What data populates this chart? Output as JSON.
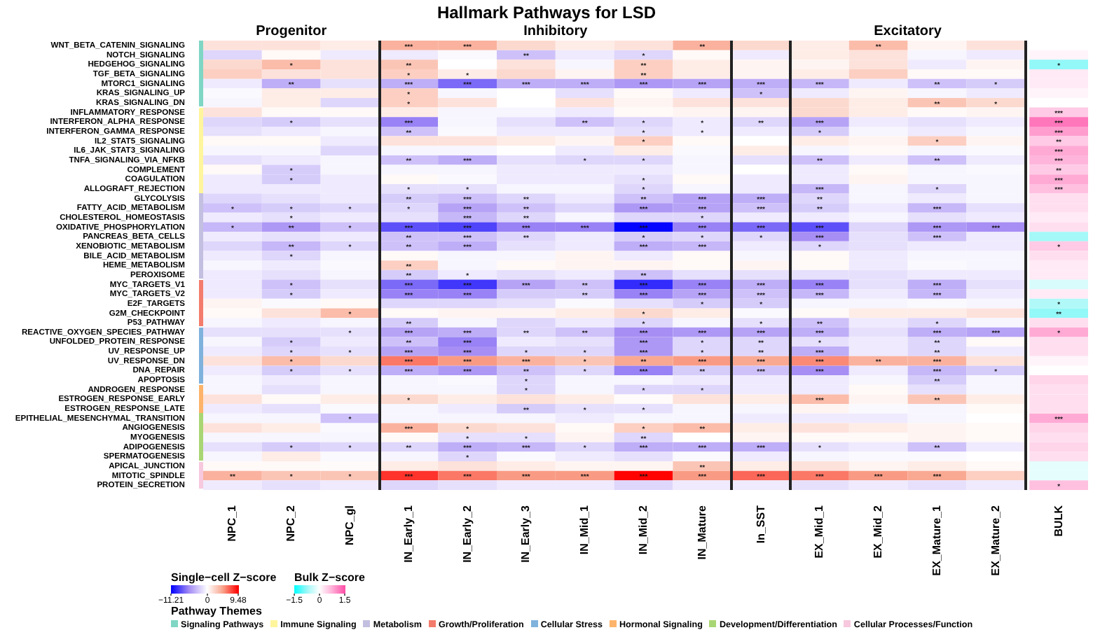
{
  "chart_data": [
    {
      "type": "heatmap",
      "title": "Hallmark Pathways for LSD",
      "clabel": "Single−cell Z−score",
      "legend_title": "Pathway Themes",
      "annotations": [
        "Progenitor",
        "Inhibitory",
        "Excitatory",
        "Signaling Pathways",
        "Immune Signaling",
        "Metabolism",
        "Growth/Proliferation",
        "Cellular Stress",
        "Hormonal Signaling",
        "Development/Differentiation",
        "Cellular Processes/Function"
      ],
      "categories": [
        "NPC_1",
        "NPC_2",
        "NPC_gl",
        "IN_Early_1",
        "IN_Early_2",
        "IN_Early_3",
        "IN_Mid_1",
        "IN_Mid_2",
        "IN_Mature",
        "In_SST",
        "EX_Mid_1",
        "EX_Mid_2",
        "EX_Mature_1",
        "EX_Mature_2"
      ],
      "y_categories": [
        "WNT_BETA_CATENIN_SIGNALING",
        "NOTCH_SIGNALING",
        "HEDGEHOG_SIGNALING",
        "TGF_BETA_SIGNALING",
        "MTORC1_SIGNALING",
        "KRAS_SIGNALING_UP",
        "KRAS_SIGNALING_DN",
        "INFLAMMATORY_RESPONSE",
        "INTERFERON_ALPHA_RESPONSE",
        "INTERFERON_GAMMA_RESPONSE",
        "IL2_STAT5_SIGNALING",
        "IL6_JAK_STAT3_SIGNALING",
        "TNFA_SIGNALING_VIA_NFKB",
        "COMPLEMENT",
        "COAGULATION",
        "ALLOGRAFT_REJECTION",
        "GLYCOLYSIS",
        "FATTY_ACID_METABOLISM",
        "CHOLESTEROL_HOMEOSTASIS",
        "OXIDATIVE_PHOSPHORYLATION",
        "PANCREAS_BETA_CELLS",
        "XENOBIOTIC_METABOLISM",
        "BILE_ACID_METABOLISM",
        "HEME_METABOLISM",
        "PEROXISOME",
        "MYC_TARGETS_V1",
        "MYC_TARGETS_V2",
        "E2F_TARGETS",
        "G2M_CHECKPOINT",
        "P53_PATHWAY",
        "REACTIVE_OXYGEN_SPECIES_PATHWAY",
        "UNFOLDED_PROTEIN_RESPONSE",
        "UV_RESPONSE_UP",
        "UV_RESPONSE_DN",
        "DNA_REPAIR",
        "APOPTOSIS",
        "ANDROGEN_RESPONSE",
        "ESTROGEN_RESPONSE_EARLY",
        "ESTROGEN_RESPONSE_LATE",
        "EPITHELIAL_MESENCHYMAL_TRANSITION",
        "ANGIOGENESIS",
        "MYOGENESIS",
        "ADIPOGENESIS",
        "SPERMATOGENESIS",
        "APICAL_JUNCTION",
        "MITOTIC_SPINDLE",
        "PROTEIN_SECRETION"
      ],
      "cells": [
        [
          1.5,
          1.5,
          1,
          4,
          4,
          2,
          1,
          1.5,
          4,
          2,
          1,
          3.5,
          0.5,
          1.5
        ],
        [
          -2,
          0.3,
          -1,
          -1,
          -0.3,
          -3,
          -1,
          -2,
          0.3,
          -1,
          1,
          1.5,
          -0.5,
          -1
        ],
        [
          2,
          3.5,
          1.5,
          3,
          0,
          1.5,
          -0.5,
          2.5,
          1,
          0.5,
          0.5,
          1.5,
          -1,
          0.5
        ],
        [
          2.5,
          1.5,
          1.5,
          2.5,
          1,
          2,
          0.5,
          2.5,
          1,
          0.5,
          1,
          2.5,
          0.3,
          0.3
        ],
        [
          -1,
          -4,
          -1.5,
          -4,
          -7,
          -4,
          -4,
          -5,
          -4.5,
          -4,
          -3.5,
          -1,
          -3,
          -2.5
        ],
        [
          -0.3,
          1,
          1,
          2.5,
          -0.5,
          0,
          -1.5,
          0.3,
          -1,
          -3,
          -1,
          0.5,
          -0.5,
          -1
        ],
        [
          -0.5,
          1,
          -2,
          2.5,
          1.5,
          0,
          1.5,
          0.5,
          1.5,
          1.5,
          2,
          1,
          3,
          2
        ],
        [
          1.5,
          0.3,
          0.3,
          1,
          -0.5,
          -0.5,
          -1,
          0.3,
          0.5,
          0.5,
          2,
          1,
          0.3,
          0.5
        ],
        [
          -2,
          -2.5,
          -1.5,
          -6,
          -0.5,
          -1.5,
          -3,
          -2,
          -1,
          -2,
          -4.5,
          -1,
          -1.5,
          -1
        ],
        [
          -1.5,
          -1,
          -0.5,
          -3,
          -0.3,
          -1,
          -1,
          -1.5,
          -1,
          -1,
          -2.5,
          -0.5,
          -1,
          -0.5
        ],
        [
          0.3,
          0.3,
          -1,
          1.5,
          1.5,
          1,
          0.5,
          2.5,
          0.3,
          0,
          1,
          0.5,
          2.5,
          0.5
        ],
        [
          -0.5,
          -0.5,
          -2,
          -0.5,
          -0.5,
          0,
          -1,
          1,
          -0.3,
          1,
          -0.5,
          0.3,
          -0.5,
          -0.3
        ],
        [
          -1.5,
          -1,
          -0.5,
          -3,
          -4,
          -1.5,
          -2,
          -2,
          -0.5,
          -1.5,
          -3,
          -1,
          -3,
          -1
        ],
        [
          0.3,
          -2.5,
          -0.5,
          -0.5,
          -0.5,
          -1,
          -1,
          -1,
          -0.5,
          0,
          -1,
          0.3,
          -0.5,
          -0.3
        ],
        [
          -1,
          -2.5,
          -1,
          0.3,
          -0.3,
          -1,
          -1,
          -1.5,
          0.3,
          -1,
          -1,
          0.5,
          -0.5,
          -0.5
        ],
        [
          -1,
          -1,
          -1,
          -1.5,
          -1.5,
          -0.5,
          -0.5,
          -2,
          -0.5,
          -1,
          -3.5,
          -0.5,
          -2,
          -0.5
        ],
        [
          -2,
          -1.5,
          -1,
          -2.5,
          -3,
          -2,
          -1,
          -3,
          -4.5,
          -4,
          -2,
          -0.5,
          -1,
          -0.5
        ],
        [
          -3,
          -2.5,
          -2,
          -2,
          -4.5,
          -3,
          -2,
          -5,
          -4.5,
          -3,
          -2.5,
          -1,
          -3.5,
          -1.5
        ],
        [
          -1,
          -1.5,
          -1,
          -1.5,
          -3.5,
          -2,
          -0.5,
          -2,
          -2,
          -1,
          -1,
          -0.5,
          -1.5,
          -1
        ],
        [
          -3.5,
          -5,
          -3,
          -8,
          -8.5,
          -6,
          -6,
          -11,
          -6,
          -7,
          -8,
          -2,
          -5,
          -5.5
        ],
        [
          -1,
          -1.5,
          -1,
          -3,
          -3,
          -2,
          -1,
          -2.5,
          -2,
          -2,
          -5.5,
          -1.5,
          -3,
          -1
        ],
        [
          -2,
          -3.5,
          -2,
          -3,
          -4,
          -1.5,
          -1,
          -4,
          -3.5,
          -1,
          -2,
          -1.5,
          -1,
          -1
        ],
        [
          -1,
          -2,
          -0.5,
          0.3,
          -0.5,
          -0.5,
          0.5,
          -1,
          0.3,
          -0.5,
          0.3,
          -1,
          -0.5,
          -0.5
        ],
        [
          -0.5,
          -1,
          -0.3,
          2.5,
          -0.5,
          0.3,
          0.5,
          0.5,
          0.3,
          0.5,
          0.3,
          -1,
          -0.3,
          -0.5
        ],
        [
          -1,
          -1.5,
          -0.5,
          -2.5,
          -1,
          -1.5,
          -1,
          -3,
          -1.5,
          -1.5,
          -1.5,
          -1.5,
          -1,
          -1
        ],
        [
          -1,
          -3,
          -1.5,
          -7,
          -9,
          -4.5,
          -3,
          -9.5,
          -6,
          -4,
          -6,
          -1.5,
          -4,
          -1.5
        ],
        [
          -1,
          -2.5,
          -1,
          -6,
          -6,
          -2.5,
          -2.5,
          -6,
          -4.5,
          -3,
          -3.5,
          -1,
          -3.5,
          -1
        ],
        [
          0.5,
          -0.3,
          0.3,
          -2,
          -2,
          -1.5,
          -0.3,
          -1.5,
          -2.5,
          -2.5,
          -0.5,
          -0.5,
          -0.3,
          -0.5
        ],
        [
          0.3,
          1.5,
          3.5,
          0.3,
          0.5,
          0.5,
          1,
          2,
          1,
          -0.3,
          0.3,
          1,
          1,
          1.5
        ],
        [
          -0.5,
          -1,
          -0.5,
          -2.5,
          -0.5,
          -2,
          -1,
          -2,
          -0.5,
          -1.5,
          -3,
          -1,
          -2,
          -0.5
        ],
        [
          -1.5,
          -1.5,
          -1.5,
          -4.5,
          -4,
          -2,
          -3,
          -5.5,
          -5,
          -4.5,
          -4,
          -1.5,
          -4,
          -4.5
        ],
        [
          -0.5,
          -2.5,
          -1,
          -3,
          -6,
          -1,
          -1.5,
          -5,
          -2,
          -2,
          -1.5,
          -1,
          -2,
          0.3
        ],
        [
          -1,
          -2,
          -1.5,
          -4.5,
          -5.5,
          -2,
          -2,
          -5,
          -2,
          -2,
          -4,
          -1,
          -2,
          -1
        ],
        [
          1.5,
          3.5,
          2,
          6,
          5,
          4,
          3,
          4.5,
          5,
          4.5,
          5.5,
          4,
          4,
          1.5
        ],
        [
          -1,
          -2.5,
          -1.5,
          -4,
          -5,
          -3,
          -2,
          -6,
          -2.5,
          -3,
          -5.5,
          -1,
          -3.5,
          -2.5
        ],
        [
          -0.5,
          -1,
          -0.5,
          -0.5,
          -0.3,
          -2,
          -0.5,
          -0.5,
          -1,
          -1,
          -1,
          -0.5,
          -2.5,
          -0.5
        ],
        [
          -0.5,
          -1.5,
          -0.5,
          -0.5,
          -0.5,
          -2,
          -0.5,
          -2,
          -2,
          -1,
          -1,
          0.3,
          -1.5,
          -0.5
        ],
        [
          1.5,
          0.3,
          1,
          2,
          1,
          1.5,
          1,
          0.2,
          1.5,
          1,
          3.5,
          0.5,
          3,
          1
        ],
        [
          -1,
          -1.5,
          -0.3,
          -0.5,
          -1,
          -2.5,
          -1.5,
          -1.5,
          -0.5,
          -0.5,
          0.5,
          -0.3,
          -0.5,
          0.3
        ],
        [
          -0.5,
          -0.5,
          -3,
          -0.5,
          -0.5,
          -0.5,
          -1,
          -0.5,
          -0.5,
          -1,
          -1,
          -1,
          -0.5,
          0
        ],
        [
          1.5,
          1,
          -0.3,
          4,
          2,
          1.5,
          0.3,
          2.5,
          3.5,
          1,
          1.5,
          1,
          0.5,
          0.3
        ],
        [
          -0.5,
          -0.5,
          -0.5,
          0.3,
          -1.5,
          -1.5,
          0.5,
          -2,
          0,
          0.5,
          0.3,
          0.3,
          0.5,
          0.3
        ],
        [
          -1.5,
          -2.5,
          -2,
          -2,
          -4,
          -3.5,
          -2,
          -4,
          -4,
          -4,
          -1.5,
          -1,
          -3,
          -1
        ],
        [
          -0.5,
          1,
          -0.3,
          -0.5,
          -2,
          -0.3,
          -1,
          -1.5,
          -0.3,
          -1,
          -0.5,
          -0.3,
          -0.3,
          0
        ],
        [
          0.3,
          0.3,
          0.2,
          1,
          1.5,
          1,
          0.5,
          0.5,
          3,
          1,
          1.5,
          0.5,
          1,
          0.3
        ],
        [
          4,
          3,
          3,
          8,
          6,
          5,
          5,
          9.4,
          5,
          6.5,
          6,
          5,
          4.5,
          2.5
        ],
        [
          -1,
          -1.5,
          -1,
          -2,
          -1.5,
          -1,
          -1,
          -2,
          -1,
          -1,
          -1.5,
          -1,
          -1.5,
          -1
        ]
      ],
      "cell_labels": [
        [
          null,
          null,
          null,
          "***",
          "***",
          null,
          null,
          null,
          "**",
          null,
          null,
          "**",
          null,
          null
        ],
        [
          null,
          null,
          null,
          null,
          null,
          "**",
          null,
          "*",
          null,
          null,
          null,
          null,
          null,
          null
        ],
        [
          null,
          "*",
          null,
          "**",
          null,
          null,
          null,
          "**",
          null,
          null,
          null,
          null,
          null,
          null
        ],
        [
          null,
          null,
          null,
          "*",
          "*",
          null,
          null,
          "**",
          null,
          null,
          null,
          null,
          null,
          null
        ],
        [
          null,
          "**",
          null,
          "***",
          "***",
          "***",
          "***",
          "***",
          "***",
          "***",
          "***",
          null,
          "**",
          "*"
        ],
        [
          null,
          null,
          null,
          "*",
          null,
          null,
          null,
          null,
          null,
          "*",
          null,
          null,
          null,
          null
        ],
        [
          null,
          null,
          null,
          "*",
          null,
          null,
          null,
          null,
          null,
          null,
          null,
          null,
          "**",
          "*"
        ],
        [
          null,
          null,
          null,
          null,
          null,
          null,
          null,
          null,
          null,
          null,
          null,
          null,
          null,
          null
        ],
        [
          null,
          "*",
          null,
          "***",
          null,
          null,
          "**",
          "*",
          "*",
          "**",
          "***",
          null,
          null,
          null
        ],
        [
          null,
          null,
          null,
          "**",
          null,
          null,
          null,
          "*",
          "*",
          null,
          "*",
          null,
          null,
          null
        ],
        [
          null,
          null,
          null,
          null,
          null,
          null,
          null,
          "*",
          null,
          null,
          null,
          null,
          "*",
          null
        ],
        [
          null,
          null,
          null,
          null,
          null,
          null,
          null,
          null,
          null,
          null,
          null,
          null,
          null,
          null
        ],
        [
          null,
          null,
          null,
          "**",
          "***",
          null,
          "*",
          "*",
          null,
          null,
          "**",
          null,
          "**",
          null
        ],
        [
          null,
          "*",
          null,
          null,
          null,
          null,
          null,
          null,
          null,
          null,
          null,
          null,
          null,
          null
        ],
        [
          null,
          "*",
          null,
          null,
          null,
          null,
          null,
          "*",
          null,
          null,
          null,
          null,
          null,
          null
        ],
        [
          null,
          null,
          null,
          "*",
          "*",
          null,
          null,
          "*",
          null,
          null,
          "***",
          null,
          "*",
          null
        ],
        [
          null,
          null,
          null,
          "**",
          "***",
          "**",
          null,
          "**",
          "***",
          "***",
          "**",
          null,
          null,
          null
        ],
        [
          "*",
          "*",
          "*",
          "*",
          "***",
          "**",
          null,
          "***",
          "***",
          "***",
          "**",
          null,
          "***",
          null
        ],
        [
          null,
          "*",
          null,
          null,
          "***",
          "**",
          null,
          null,
          "*",
          null,
          null,
          null,
          null,
          null
        ],
        [
          "*",
          "**",
          "*",
          "***",
          "***",
          "***",
          "***",
          "***",
          "***",
          "***",
          "***",
          null,
          "***",
          "***"
        ],
        [
          null,
          null,
          null,
          "**",
          "***",
          "**",
          null,
          "*",
          "*",
          "*",
          "***",
          null,
          "***",
          null
        ],
        [
          null,
          "**",
          "*",
          "**",
          "***",
          null,
          null,
          "***",
          "***",
          null,
          "*",
          null,
          null,
          null
        ],
        [
          null,
          "*",
          null,
          null,
          null,
          null,
          null,
          null,
          null,
          null,
          null,
          null,
          null,
          null
        ],
        [
          null,
          null,
          null,
          "**",
          null,
          null,
          null,
          null,
          null,
          null,
          null,
          null,
          null,
          null
        ],
        [
          null,
          null,
          null,
          "**",
          "*",
          null,
          null,
          "**",
          null,
          null,
          null,
          null,
          null,
          null
        ],
        [
          null,
          "*",
          null,
          "***",
          "***",
          "***",
          "**",
          "***",
          "***",
          "***",
          "***",
          null,
          "***",
          null
        ],
        [
          null,
          "*",
          null,
          "***",
          "***",
          null,
          "**",
          "***",
          "***",
          "***",
          "***",
          null,
          "***",
          null
        ],
        [
          null,
          null,
          null,
          null,
          null,
          null,
          null,
          null,
          "*",
          "*",
          null,
          null,
          null,
          null
        ],
        [
          null,
          null,
          "*",
          null,
          null,
          null,
          null,
          "*",
          null,
          null,
          null,
          null,
          null,
          null
        ],
        [
          null,
          null,
          null,
          "**",
          null,
          null,
          null,
          "*",
          null,
          "*",
          "**",
          null,
          "*",
          null
        ],
        [
          null,
          null,
          "*",
          "***",
          "***",
          "**",
          "**",
          "***",
          "***",
          "***",
          "***",
          null,
          "***",
          "***"
        ],
        [
          null,
          "*",
          null,
          "**",
          "***",
          null,
          null,
          "***",
          "*",
          "**",
          "*",
          null,
          "**",
          null
        ],
        [
          null,
          "*",
          "*",
          "***",
          "***",
          "*",
          "*",
          "***",
          "*",
          "**",
          "***",
          null,
          "**",
          null
        ],
        [
          null,
          "*",
          null,
          "***",
          "***",
          "***",
          "*",
          "**",
          "***",
          "***",
          "***",
          "**",
          "***",
          null
        ],
        [
          null,
          "*",
          "*",
          "***",
          "***",
          "**",
          "*",
          "***",
          "**",
          "***",
          "***",
          null,
          "***",
          "*"
        ],
        [
          null,
          null,
          null,
          null,
          null,
          "*",
          null,
          null,
          null,
          null,
          null,
          null,
          "**",
          null
        ],
        [
          null,
          null,
          null,
          null,
          null,
          "*",
          null,
          "*",
          "*",
          null,
          null,
          null,
          null,
          null
        ],
        [
          null,
          null,
          null,
          "*",
          null,
          null,
          null,
          null,
          null,
          null,
          "***",
          null,
          "**",
          null
        ],
        [
          null,
          null,
          null,
          null,
          null,
          "**",
          "*",
          "*",
          null,
          null,
          null,
          null,
          null,
          null
        ],
        [
          null,
          null,
          "*",
          null,
          null,
          null,
          null,
          null,
          null,
          null,
          null,
          null,
          null,
          null
        ],
        [
          null,
          null,
          null,
          "***",
          "*",
          null,
          null,
          "*",
          "**",
          null,
          null,
          null,
          null,
          null
        ],
        [
          null,
          null,
          null,
          null,
          "*",
          "*",
          null,
          "**",
          null,
          null,
          null,
          null,
          null,
          null
        ],
        [
          null,
          "*",
          "*",
          "**",
          "***",
          "***",
          "*",
          "***",
          "***",
          "***",
          "*",
          null,
          "**",
          null
        ],
        [
          null,
          null,
          null,
          null,
          "*",
          null,
          null,
          null,
          null,
          null,
          null,
          null,
          null,
          null
        ],
        [
          null,
          null,
          null,
          null,
          null,
          null,
          null,
          null,
          "**",
          null,
          null,
          null,
          null,
          null
        ],
        [
          "**",
          "*",
          "*",
          "***",
          "***",
          "***",
          "***",
          "***",
          "***",
          "***",
          "***",
          "***",
          "***",
          null
        ],
        [
          null,
          null,
          null,
          null,
          null,
          null,
          null,
          null,
          null,
          null,
          null,
          null,
          null,
          null
        ]
      ],
      "clim": [
        -11.21,
        9.48
      ],
      "cticks": [
        {
          "value": -11.21,
          "label": "−11.21"
        },
        0,
        9.48
      ]
    },
    {
      "type": "heatmap",
      "clabel": "Bulk Z−score",
      "tick_labels": "x",
      "categories": [
        "BULK"
      ],
      "y_categories": [
        null,
        null,
        null,
        null,
        null,
        null,
        null,
        null,
        null,
        null,
        null,
        null,
        null,
        null,
        null,
        null,
        null,
        null,
        null,
        null,
        null,
        null,
        null,
        null,
        null,
        null,
        null,
        null,
        null,
        null,
        null,
        null,
        null,
        null,
        null,
        null,
        null,
        null,
        null,
        null,
        null,
        null,
        null,
        null,
        null,
        null,
        null
      ],
      "cells": [
        [
          0
        ],
        [
          0.1
        ],
        [
          -0.8
        ],
        [
          0.2
        ],
        [
          0.2
        ],
        [
          0.1
        ],
        [
          0
        ],
        [
          0.5
        ],
        [
          1.2
        ],
        [
          0.9
        ],
        [
          0.5
        ],
        [
          0.8
        ],
        [
          0.7
        ],
        [
          0.5
        ],
        [
          0.8
        ],
        [
          0.6
        ],
        [
          0.3
        ],
        [
          0.3
        ],
        [
          0.2
        ],
        [
          0.3
        ],
        [
          -0.7
        ],
        [
          0.5
        ],
        [
          0.3
        ],
        [
          0.2
        ],
        [
          0.2
        ],
        [
          -0.3
        ],
        [
          0.2
        ],
        [
          -0.6
        ],
        [
          -0.8
        ],
        [
          0.3
        ],
        [
          0.8
        ],
        [
          0.3
        ],
        [
          0.3
        ],
        [
          0.1
        ],
        [
          0
        ],
        [
          0.4
        ],
        [
          0.3
        ],
        [
          0.3
        ],
        [
          0.3
        ],
        [
          0.8
        ],
        [
          0.4
        ],
        [
          0.3
        ],
        [
          0.4
        ],
        [
          0.3
        ],
        [
          -0.2
        ],
        [
          -0.2
        ],
        [
          0.6
        ]
      ],
      "cell_labels": [
        [
          null
        ],
        [
          null
        ],
        [
          "*"
        ],
        [
          null
        ],
        [
          null
        ],
        [
          null
        ],
        [
          null
        ],
        [
          "***"
        ],
        [
          "***"
        ],
        [
          "***"
        ],
        [
          "**"
        ],
        [
          "***"
        ],
        [
          "***"
        ],
        [
          "**"
        ],
        [
          "***"
        ],
        [
          "***"
        ],
        [
          null
        ],
        [
          null
        ],
        [
          null
        ],
        [
          null
        ],
        [
          null
        ],
        [
          "*"
        ],
        [
          null
        ],
        [
          null
        ],
        [
          null
        ],
        [
          null
        ],
        [
          null
        ],
        [
          "*"
        ],
        [
          "**"
        ],
        [
          null
        ],
        [
          "*"
        ],
        [
          null
        ],
        [
          null
        ],
        [
          null
        ],
        [
          null
        ],
        [
          null
        ],
        [
          null
        ],
        [
          null
        ],
        [
          null
        ],
        [
          "***"
        ],
        [
          null
        ],
        [
          null
        ],
        [
          null
        ],
        [
          null
        ],
        [
          null
        ],
        [
          null
        ],
        [
          "*"
        ]
      ],
      "clim": [
        -1.5,
        1.5
      ],
      "cticks": [
        {
          "value": -1.5,
          "label": "−1.5"
        },
        0,
        1.5
      ]
    }
  ]
}
